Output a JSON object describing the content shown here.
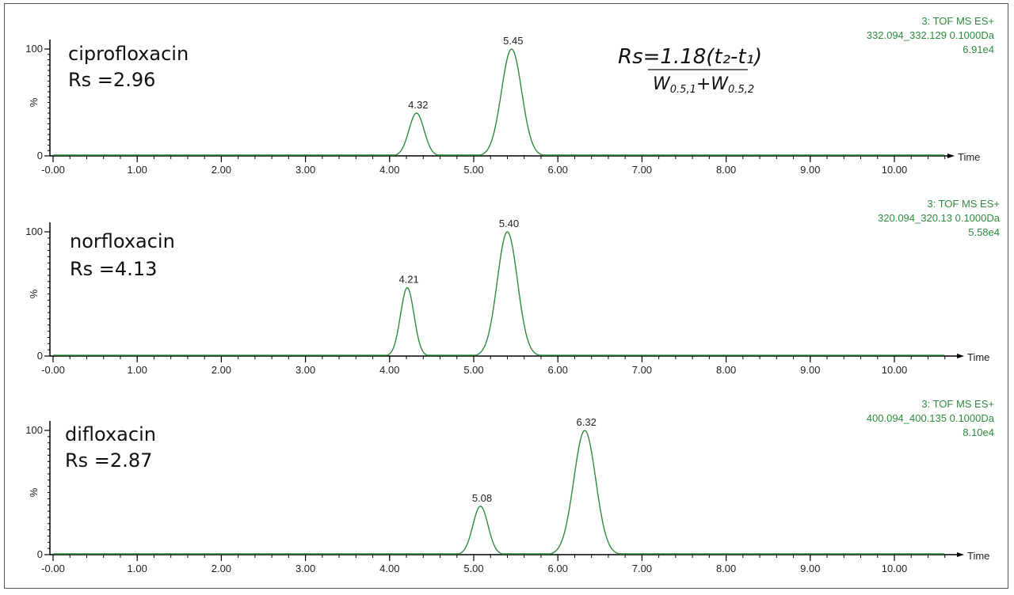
{
  "colors": {
    "trace": "#2e8b3e",
    "info": "#2e8b3e",
    "axis": "#000000"
  },
  "formula": {
    "numerator": "Rs=1.18(t₂-t₁)",
    "denominator": "W0.5,1+W0.5,2"
  },
  "chart_data": [
    {
      "type": "line",
      "compound": "ciprofloxacin",
      "rs": "Rs =2.96",
      "info": [
        "3: TOF MS ES+",
        "332.094_332.129 0.1000Da",
        "6.91e4"
      ],
      "xlabel": "Time",
      "ylabel": "%",
      "ylim": [
        0,
        100
      ],
      "xlim": [
        -0.05,
        10.75
      ],
      "yticks": [
        "100",
        "0"
      ],
      "xticks": [
        "-0.00",
        "1.00",
        "2.00",
        "3.00",
        "4.00",
        "5.00",
        "6.00",
        "7.00",
        "8.00",
        "9.00",
        "10.00"
      ],
      "peaks": [
        {
          "label": "4.32",
          "rt": 4.32,
          "height": 40,
          "sigma": 0.09
        },
        {
          "label": "5.45",
          "rt": 5.45,
          "height": 100,
          "sigma": 0.12
        }
      ]
    },
    {
      "type": "line",
      "compound": "norfloxacin",
      "rs": "Rs =4.13",
      "info": [
        "3: TOF MS ES+",
        "320.094_320.13 0.1000Da",
        "5.58e4"
      ],
      "xlabel": "Time",
      "ylabel": "%",
      "ylim": [
        0,
        100
      ],
      "xlim": [
        -0.05,
        10.75
      ],
      "yticks": [
        "100",
        "0"
      ],
      "xticks": [
        "-0.00",
        "1.00",
        "2.00",
        "3.00",
        "4.00",
        "5.00",
        "6.00",
        "7.00",
        "8.00",
        "9.00",
        "10.00"
      ],
      "peaks": [
        {
          "label": "4.21",
          "rt": 4.21,
          "height": 55,
          "sigma": 0.08
        },
        {
          "label": "5.40",
          "rt": 5.4,
          "height": 100,
          "sigma": 0.12
        }
      ]
    },
    {
      "type": "line",
      "compound": "difloxacin",
      "rs": "Rs =2.87",
      "info": [
        "3: TOF MS ES+",
        "400.094_400.135 0.1000Da",
        "8.10e4"
      ],
      "xlabel": "Time",
      "ylabel": "%",
      "ylim": [
        0,
        100
      ],
      "xlim": [
        -0.05,
        10.75
      ],
      "yticks": [
        "100",
        "0"
      ],
      "xticks": [
        "-0.00",
        "1.00",
        "2.00",
        "3.00",
        "4.00",
        "5.00",
        "6.00",
        "7.00",
        "8.00",
        "9.00",
        "10.00"
      ],
      "peaks": [
        {
          "label": "5.08",
          "rt": 5.08,
          "height": 39,
          "sigma": 0.09
        },
        {
          "label": "6.32",
          "rt": 6.32,
          "height": 100,
          "sigma": 0.13
        }
      ]
    }
  ]
}
